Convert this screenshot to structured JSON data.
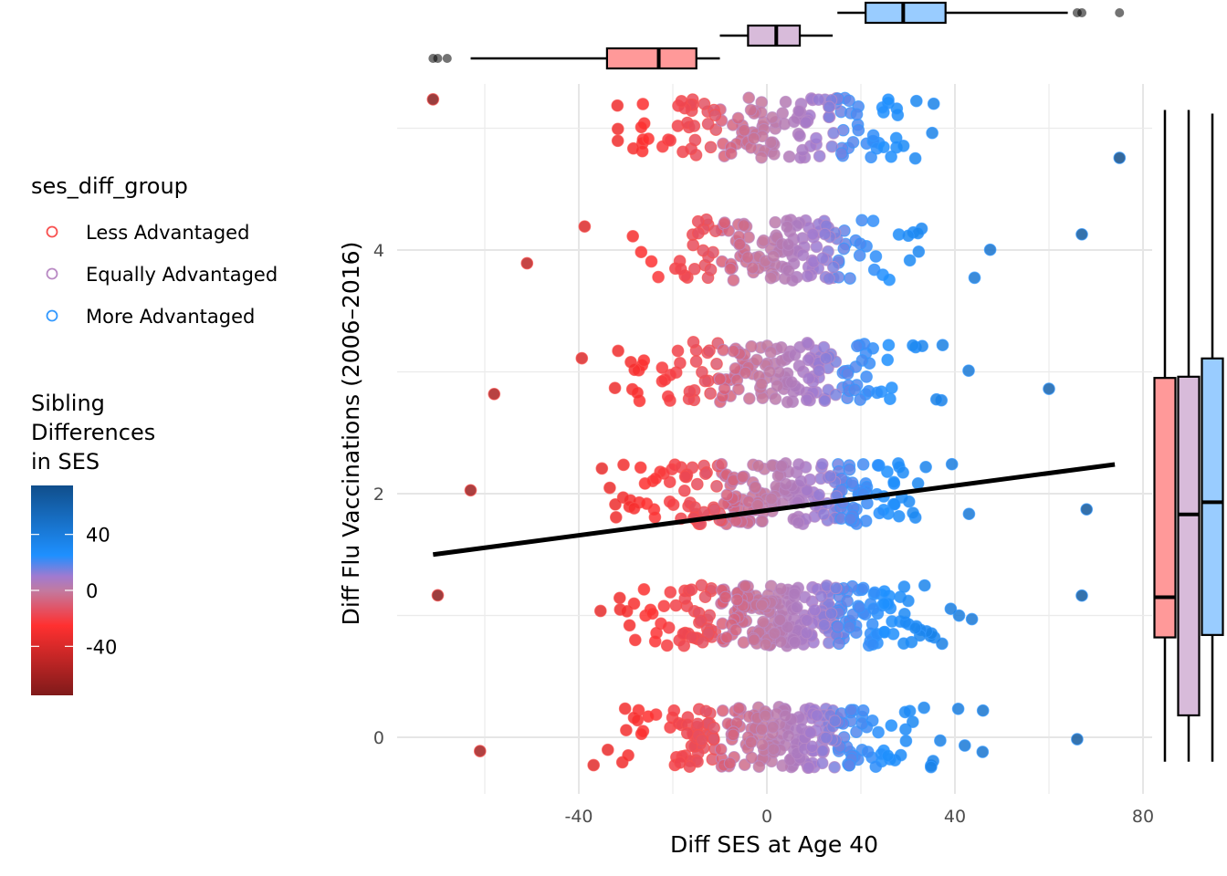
{
  "chart_data": {
    "type": "scatter",
    "title": "",
    "xlabel": "Diff SES at Age 40",
    "ylabel": "Diff Flu Vaccinations (2006–2016)",
    "xlim": [
      -78,
      82
    ],
    "ylim": [
      -0.45,
      5.3
    ],
    "x_ticks": [
      -40,
      0,
      40,
      80
    ],
    "x_tick_labels": [
      "-40",
      "0",
      "40",
      "80"
    ],
    "x_minor_grid": [
      -60,
      -20,
      20,
      60
    ],
    "y_ticks": [
      0,
      2,
      4
    ],
    "y_tick_labels": [
      "0",
      "2",
      "4"
    ],
    "y_minor_grid": [
      1,
      3,
      5
    ],
    "grid": true,
    "jitter_height": 0.25,
    "rows": [
      {
        "y": 0,
        "n": 260,
        "xmin": -61,
        "xmax": 66
      },
      {
        "y": 1,
        "n": 300,
        "xmin": -70,
        "xmax": 67
      },
      {
        "y": 2,
        "n": 240,
        "xmin": -63,
        "xmax": 68
      },
      {
        "y": 3,
        "n": 170,
        "xmin": -58,
        "xmax": 60
      },
      {
        "y": 4,
        "n": 150,
        "xmin": -51,
        "xmax": 67
      },
      {
        "y": 5,
        "n": 150,
        "xmin": -71,
        "xmax": 75
      }
    ],
    "regression_line": {
      "x": [
        -71,
        74
      ],
      "y": [
        1.5,
        2.24
      ],
      "color": "#000000"
    },
    "groups": [
      {
        "name": "Less Advantaged",
        "color": "#f8504f",
        "fill": "#ff9999",
        "range": [
          -80,
          -10
        ]
      },
      {
        "name": "Equally Advantaged",
        "color": "#b98ac4",
        "fill": "#d8bbda",
        "range": [
          -10,
          15
        ]
      },
      {
        "name": "More Advantaged",
        "color": "#3399ff",
        "fill": "#99ccff",
        "range": [
          15,
          80
        ]
      }
    ],
    "marginal_x_boxplots": [
      {
        "group": "Less Advantaged",
        "min": -63,
        "q1": -34,
        "median": -23,
        "q3": -15,
        "max": -10,
        "outliers": [
          -71,
          -70,
          -68
        ]
      },
      {
        "group": "Equally Advantaged",
        "min": -10,
        "q1": -4,
        "median": 2,
        "q3": 7,
        "max": 14,
        "outliers": []
      },
      {
        "group": "More Advantaged",
        "min": 15,
        "q1": 21,
        "median": 29,
        "q3": 38,
        "max": 64,
        "outliers": [
          66,
          67,
          75
        ]
      }
    ],
    "marginal_y_boxplots": [
      {
        "group": "Less Advantaged",
        "min": -0.2,
        "q1": 0.82,
        "median": 1.15,
        "q3": 2.95,
        "max": 5.15
      },
      {
        "group": "Equally Advantaged",
        "min": -0.2,
        "q1": 0.18,
        "median": 1.83,
        "q3": 2.96,
        "max": 5.15
      },
      {
        "group": "More Advantaged",
        "min": -0.2,
        "q1": 0.84,
        "median": 1.93,
        "q3": 3.11,
        "max": 5.12
      }
    ],
    "legend_groups": {
      "title": "ses_diff_group",
      "placement": "left",
      "items": [
        "Less Advantaged",
        "Equally Advantaged",
        "More Advantaged"
      ]
    },
    "colorbar": {
      "title_lines": [
        "Sibling",
        "Differences",
        "in SES"
      ],
      "range": [
        -75,
        75
      ],
      "ticks": [
        -40,
        0,
        40
      ],
      "tick_labels": [
        "-40",
        "0",
        "40"
      ],
      "stops": [
        {
          "value": -75,
          "color": "#7f1a1a"
        },
        {
          "value": -25,
          "color": "#ff3030"
        },
        {
          "value": 0,
          "color": "#c27aa0"
        },
        {
          "value": 10,
          "color": "#a07ad0"
        },
        {
          "value": 25,
          "color": "#1e90ff"
        },
        {
          "value": 75,
          "color": "#104e8b"
        }
      ]
    }
  }
}
